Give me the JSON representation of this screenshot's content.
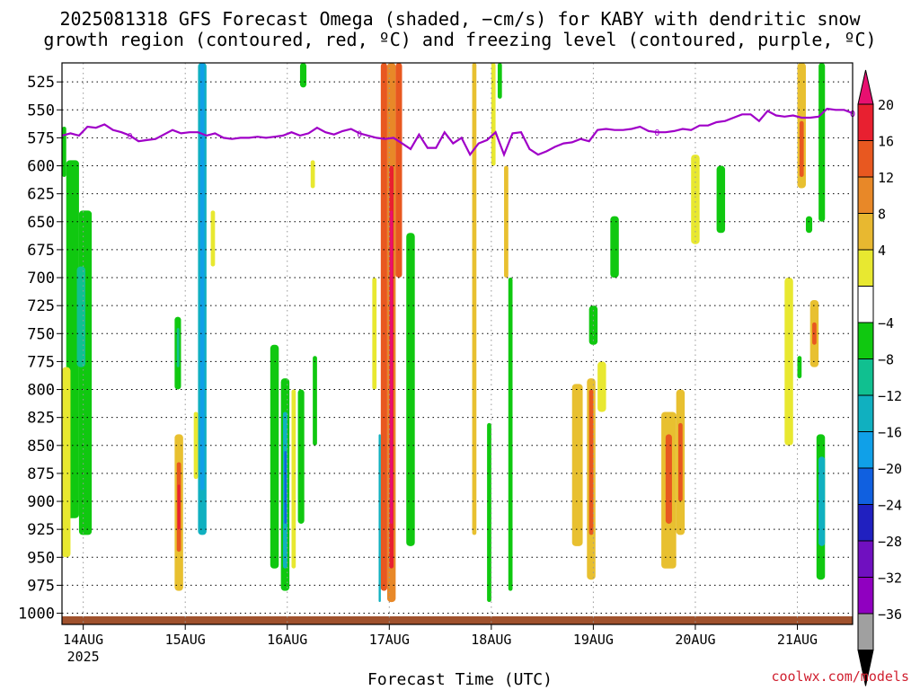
{
  "title_line1": "2025081318 GFS Forecast Omega (shaded, −cm/s) for KABY with dendritic snow",
  "title_line2": "growth region (contoured, red, ºC) and freezing level (contoured, purple, ºC)",
  "credit": "coolwx.com/models",
  "chart_data": {
    "type": "heatmap",
    "xlabel": "Forecast Time (UTC)",
    "ylabel": "",
    "y_axis": {
      "range": [
        1010,
        508
      ],
      "ticks": [
        525,
        550,
        575,
        600,
        625,
        650,
        675,
        700,
        725,
        750,
        775,
        800,
        825,
        850,
        875,
        900,
        925,
        950,
        975,
        1000
      ]
    },
    "x_axis": {
      "range_hours": [
        -5,
        181
      ],
      "ticks": [
        {
          "label": "14AUG",
          "sublabel": "2025",
          "hour": 0
        },
        {
          "label": "15AUG",
          "hour": 24
        },
        {
          "label": "16AUG",
          "hour": 48
        },
        {
          "label": "17AUG",
          "hour": 72
        },
        {
          "label": "18AUG",
          "hour": 96
        },
        {
          "label": "19AUG",
          "hour": 120
        },
        {
          "label": "20AUG",
          "hour": 144
        },
        {
          "label": "21AUG",
          "hour": 168
        }
      ]
    },
    "grid": true,
    "colorbar": {
      "labels": [
        "20",
        "16",
        "12",
        "8",
        "4",
        "−4",
        "−8",
        "−12",
        "−16",
        "−20",
        "−24",
        "−28",
        "−32",
        "−36"
      ],
      "colors": [
        "#e8e830",
        "#e8b830",
        "#e88828",
        "#e85820",
        "#e82030",
        "#e81070",
        "#ffffff",
        "#10c810",
        "#10c090",
        "#10b0c0",
        "#10a0e8",
        "#1060e0",
        "#2020c0",
        "#7010c0",
        "#9000c0",
        "#a0a0a0",
        "#000000"
      ]
    },
    "freezing_level": {
      "label": "0",
      "color": "#a000c8",
      "hours": [
        -5,
        -3,
        -1,
        1,
        3,
        5,
        7,
        9,
        11,
        13,
        15,
        17,
        19,
        21,
        23,
        25,
        27,
        29,
        31,
        33,
        35,
        37,
        39,
        41,
        43,
        45,
        47,
        49,
        51,
        53,
        55,
        57,
        59,
        61,
        63,
        65,
        67,
        69,
        71,
        73,
        75,
        77,
        79,
        81,
        83,
        85,
        87,
        89,
        91,
        93,
        95,
        97,
        99,
        101,
        103,
        105,
        107,
        109,
        111,
        113,
        115,
        117,
        119,
        121,
        123,
        125,
        127,
        129,
        131,
        133,
        135,
        137,
        139,
        141,
        143,
        145,
        147,
        149,
        151,
        153,
        155,
        157,
        159,
        161,
        163,
        165,
        167,
        169,
        171,
        173,
        175,
        177,
        179,
        181
      ],
      "pressure": [
        573,
        571,
        573,
        565,
        566,
        563,
        568,
        570,
        573,
        578,
        577,
        576,
        572,
        568,
        571,
        570,
        570,
        573,
        571,
        575,
        576,
        575,
        575,
        574,
        575,
        574,
        573,
        570,
        573,
        571,
        566,
        570,
        572,
        569,
        567,
        571,
        573,
        575,
        576,
        575,
        580,
        585,
        572,
        584,
        584,
        570,
        580,
        575,
        590,
        580,
        577,
        570,
        590,
        571,
        570,
        585,
        590,
        587,
        583,
        580,
        579,
        576,
        578,
        568,
        567,
        568,
        568,
        567,
        565,
        569,
        570,
        570,
        569,
        567,
        568,
        564,
        564,
        561,
        560,
        557,
        554,
        554,
        560,
        551,
        555,
        556,
        555,
        557,
        557,
        556,
        549,
        550,
        550,
        553
      ]
    },
    "omega_regions": [
      {
        "h0": -4.0,
        "h1": -1.0,
        "p0": 595,
        "p1": 915,
        "v": -6
      },
      {
        "h0": -1.0,
        "h1": 2.0,
        "p0": 640,
        "p1": 930,
        "v": -6
      },
      {
        "h0": -1.5,
        "h1": 0.5,
        "p0": 690,
        "p1": 780,
        "v": -10
      },
      {
        "h0": -1.0,
        "h1": 1.0,
        "p0": 865,
        "p1": 905,
        "v": -8
      },
      {
        "h0": -5.0,
        "h1": -3.0,
        "p0": 780,
        "p1": 950,
        "v": 5
      },
      {
        "h0": -5.0,
        "h1": -4.0,
        "p0": 565,
        "p1": 610,
        "v": -6
      },
      {
        "h0": 21.5,
        "h1": 23.5,
        "p0": 840,
        "p1": 980,
        "v": 6
      },
      {
        "h0": 22.0,
        "h1": 23.0,
        "p0": 865,
        "p1": 945,
        "v": 12
      },
      {
        "h0": 22.2,
        "h1": 22.8,
        "p0": 885,
        "p1": 925,
        "v": 16
      },
      {
        "h0": 21.5,
        "h1": 23.0,
        "p0": 735,
        "p1": 800,
        "v": -6
      },
      {
        "h0": 22.0,
        "h1": 22.6,
        "p0": 745,
        "p1": 780,
        "v": -10
      },
      {
        "h0": 27.0,
        "h1": 29.0,
        "p0": 508,
        "p1": 930,
        "v": -12
      },
      {
        "h0": 27.5,
        "h1": 28.5,
        "p0": 508,
        "p1": 890,
        "v": -16
      },
      {
        "h0": 30.0,
        "h1": 31.0,
        "p0": 640,
        "p1": 690,
        "v": 5
      },
      {
        "h0": 26.0,
        "h1": 27.0,
        "p0": 820,
        "p1": 880,
        "v": 5
      },
      {
        "h0": 46.5,
        "h1": 48.5,
        "p0": 790,
        "p1": 980,
        "v": -6
      },
      {
        "h0": 47.0,
        "h1": 48.0,
        "p0": 820,
        "p1": 960,
        "v": -12
      },
      {
        "h0": 47.3,
        "h1": 47.8,
        "p0": 855,
        "p1": 920,
        "v": -20
      },
      {
        "h0": 44.0,
        "h1": 46.0,
        "p0": 760,
        "p1": 960,
        "v": -6
      },
      {
        "h0": 49.0,
        "h1": 50.0,
        "p0": 800,
        "p1": 960,
        "v": 5
      },
      {
        "h0": 50.5,
        "h1": 52.0,
        "p0": 800,
        "p1": 920,
        "v": -7
      },
      {
        "h0": 51.0,
        "h1": 52.5,
        "p0": 508,
        "p1": 530,
        "v": -6
      },
      {
        "h0": 54.0,
        "h1": 55.0,
        "p0": 770,
        "p1": 850,
        "v": -6
      },
      {
        "h0": 53.5,
        "h1": 54.5,
        "p0": 595,
        "p1": 620,
        "v": 5
      },
      {
        "h0": 71.5,
        "h1": 73.5,
        "p0": 508,
        "p1": 990,
        "v": 8
      },
      {
        "h0": 72.0,
        "h1": 73.0,
        "p0": 600,
        "p1": 960,
        "v": 16
      },
      {
        "h0": 72.2,
        "h1": 72.8,
        "p0": 640,
        "p1": 920,
        "v": 20
      },
      {
        "h0": 70.0,
        "h1": 71.5,
        "p0": 508,
        "p1": 980,
        "v": 14
      },
      {
        "h0": 73.5,
        "h1": 75.0,
        "p0": 508,
        "p1": 700,
        "v": 14
      },
      {
        "h0": 69.5,
        "h1": 70.0,
        "p0": 840,
        "p1": 990,
        "v": -12
      },
      {
        "h0": 76.0,
        "h1": 78.0,
        "p0": 660,
        "p1": 940,
        "v": -6
      },
      {
        "h0": 68.0,
        "h1": 69.0,
        "p0": 700,
        "p1": 800,
        "v": 5
      },
      {
        "h0": 91.5,
        "h1": 92.5,
        "p0": 508,
        "p1": 930,
        "v": 6
      },
      {
        "h0": 96.0,
        "h1": 97.0,
        "p0": 508,
        "p1": 600,
        "v": 5
      },
      {
        "h0": 97.5,
        "h1": 98.5,
        "p0": 508,
        "p1": 540,
        "v": -6
      },
      {
        "h0": 95.0,
        "h1": 96.0,
        "p0": 830,
        "p1": 990,
        "v": -6
      },
      {
        "h0": 100.0,
        "h1": 101.0,
        "p0": 700,
        "p1": 980,
        "v": -6
      },
      {
        "h0": 99.0,
        "h1": 100.0,
        "p0": 600,
        "p1": 700,
        "v": 6
      },
      {
        "h0": 115.0,
        "h1": 117.5,
        "p0": 795,
        "p1": 940,
        "v": 6
      },
      {
        "h0": 118.5,
        "h1": 120.5,
        "p0": 790,
        "p1": 970,
        "v": 6
      },
      {
        "h0": 119.0,
        "h1": 120.0,
        "p0": 800,
        "p1": 930,
        "v": 12
      },
      {
        "h0": 121.0,
        "h1": 123.0,
        "p0": 775,
        "p1": 820,
        "v": 5
      },
      {
        "h0": 124.0,
        "h1": 126.0,
        "p0": 645,
        "p1": 700,
        "v": -6
      },
      {
        "h0": 119.0,
        "h1": 121.0,
        "p0": 725,
        "p1": 760,
        "v": -6
      },
      {
        "h0": 136.0,
        "h1": 139.5,
        "p0": 820,
        "p1": 960,
        "v": 6
      },
      {
        "h0": 137.0,
        "h1": 138.5,
        "p0": 840,
        "p1": 920,
        "v": 12
      },
      {
        "h0": 139.5,
        "h1": 141.5,
        "p0": 800,
        "p1": 930,
        "v": 6
      },
      {
        "h0": 140.0,
        "h1": 141.0,
        "p0": 830,
        "p1": 900,
        "v": 12
      },
      {
        "h0": 143.0,
        "h1": 145.0,
        "p0": 590,
        "p1": 670,
        "v": 5
      },
      {
        "h0": 149.0,
        "h1": 151.0,
        "p0": 600,
        "p1": 660,
        "v": -6
      },
      {
        "h0": 165.0,
        "h1": 167.0,
        "p0": 700,
        "p1": 850,
        "v": 5
      },
      {
        "h0": 168.0,
        "h1": 170.0,
        "p0": 508,
        "p1": 620,
        "v": 6
      },
      {
        "h0": 168.5,
        "h1": 169.5,
        "p0": 560,
        "p1": 610,
        "v": 12
      },
      {
        "h0": 170.0,
        "h1": 171.5,
        "p0": 645,
        "p1": 660,
        "v": -6
      },
      {
        "h0": 171.0,
        "h1": 173.0,
        "p0": 720,
        "p1": 780,
        "v": 6
      },
      {
        "h0": 171.5,
        "h1": 172.5,
        "p0": 740,
        "p1": 760,
        "v": 12
      },
      {
        "h0": 168.0,
        "h1": 169.0,
        "p0": 770,
        "p1": 790,
        "v": -6
      },
      {
        "h0": 173.0,
        "h1": 174.5,
        "p0": 508,
        "p1": 650,
        "v": -6
      },
      {
        "h0": 172.5,
        "h1": 174.5,
        "p0": 840,
        "p1": 970,
        "v": -6
      },
      {
        "h0": 173.0,
        "h1": 174.5,
        "p0": 860,
        "p1": 940,
        "v": -12
      }
    ]
  }
}
